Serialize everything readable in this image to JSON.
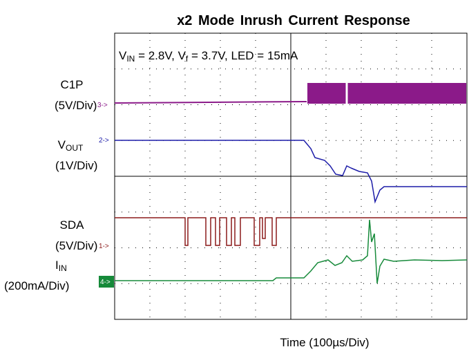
{
  "title": "x2 Mode Inrush Current Response",
  "conditions": {
    "v": "V",
    "v_sub": "IN",
    "mid": " = 2.8V, V",
    "f_sub": "f",
    "rest": " = 3.7V, LED = 15mA"
  },
  "channels": [
    {
      "name": "C1P",
      "scale": "(5V/Div)",
      "marker": "3->"
    },
    {
      "name": "V",
      "name_sub": "OUT",
      "scale": "(1V/Div)",
      "marker": "2->"
    },
    {
      "name": "SDA",
      "scale": "(5V/Div)",
      "marker": "1->"
    },
    {
      "name": "I",
      "name_sub": "IN",
      "scale": "(200mA/Div)",
      "marker": "4->"
    }
  ],
  "x_label": "Time (100µs/Div)"
}
